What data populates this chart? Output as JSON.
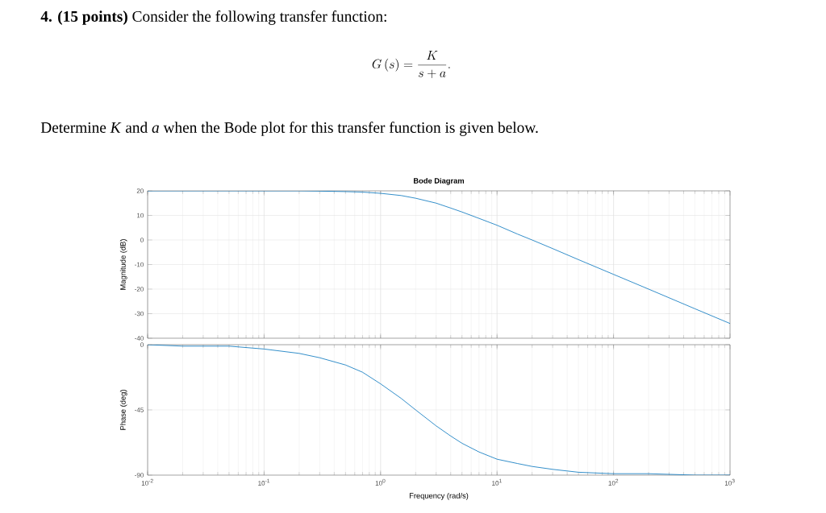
{
  "chart_data": [
    {
      "type": "line",
      "title": "Bode Diagram",
      "ylabel": "Magnitude (dB)",
      "annotations": [
        "**4. (15 points)** Consider the following transfer function:",
        "G\\left(s\\right)=\\frac{K}{s+a}.",
        "Determine *K* and *a* when the Bode plot for this transfer function is given below."
      ],
      "x": [
        0.01,
        0.02,
        0.05,
        0.1,
        0.2,
        0.3,
        0.5,
        0.7,
        1,
        1.5,
        2,
        3,
        4,
        5,
        7,
        10,
        15,
        20,
        30,
        50,
        100,
        200,
        500,
        1000
      ],
      "series": [
        {
          "color": "#0072bd",
          "values": [
            20,
            20,
            20,
            20,
            20,
            19.9,
            19.7,
            19.5,
            19,
            18.1,
            17,
            15,
            13,
            11.4,
            8.8,
            6,
            2.4,
            0,
            -3.5,
            -8,
            -14,
            -20,
            -28,
            -34
          ]
        }
      ],
      "log": "x",
      "xlim": [
        0.01,
        1000
      ],
      "xticks": [
        0.01,
        0.1,
        1,
        10,
        100,
        1000
      ],
      "ylim": [
        -40,
        20
      ],
      "yticks": [
        -40,
        -30,
        -20,
        -10,
        0,
        10,
        20
      ],
      "grid": true,
      "tick_labels": "y",
      "marker": "none"
    },
    {
      "type": "line",
      "xlabel": "Frequency (rad/s)",
      "ylabel": "Phase (deg)",
      "x": [
        0.01,
        0.02,
        0.05,
        0.1,
        0.2,
        0.3,
        0.5,
        0.7,
        1,
        1.5,
        2,
        3,
        4,
        5,
        7,
        10,
        15,
        20,
        30,
        50,
        100,
        200,
        500,
        1000
      ],
      "series": [
        {
          "color": "#0072bd",
          "values": [
            0,
            -1,
            -1,
            -3,
            -6,
            -9,
            -14,
            -19,
            -27,
            -37,
            -45,
            -56,
            -63,
            -68,
            -74,
            -79,
            -82,
            -84,
            -86,
            -88,
            -89,
            -89,
            -90,
            -90
          ]
        }
      ],
      "log": "x",
      "xlim": [
        0.01,
        1000
      ],
      "xticks": [
        {
          "value": 0.01,
          "label": "10$^{-2}$"
        },
        {
          "value": 0.1,
          "label": "10$^{-1}$"
        },
        {
          "value": 1,
          "label": "10$^{0}$"
        },
        {
          "value": 10,
          "label": "10$^{1}$"
        },
        {
          "value": 100,
          "label": "10$^{2}$"
        },
        {
          "value": 1000,
          "label": "10$^{3}$"
        }
      ],
      "ylim": [
        -90,
        0
      ],
      "yticks": [
        -90,
        -45,
        0
      ],
      "grid": true,
      "marker": "none"
    }
  ]
}
